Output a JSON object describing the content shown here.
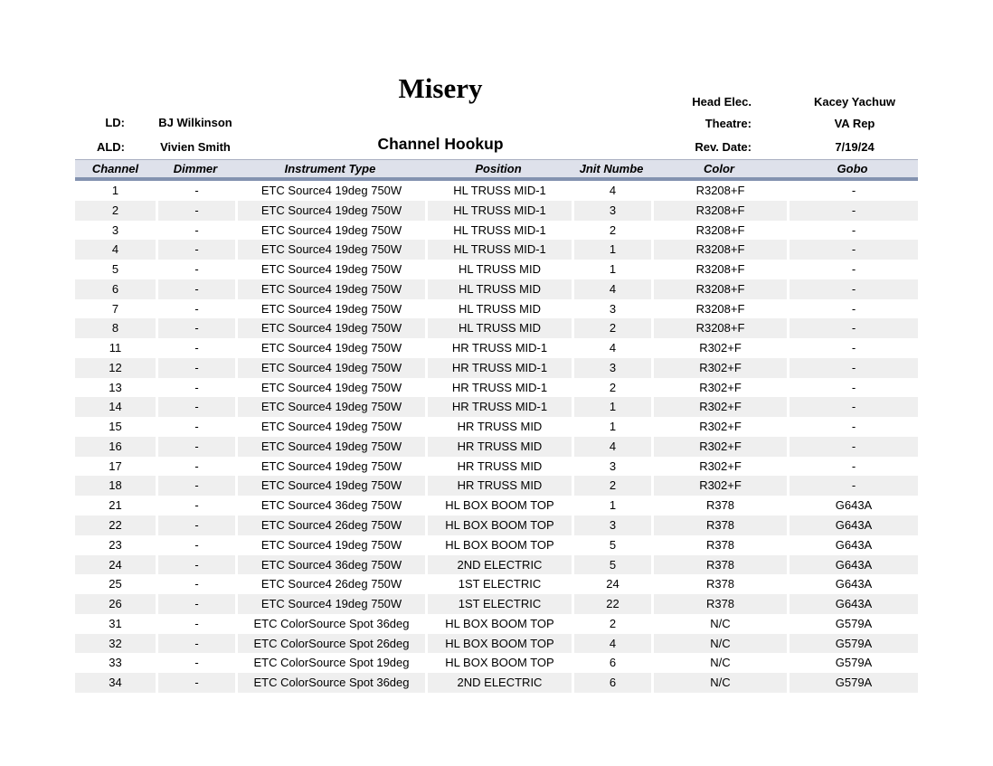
{
  "title": "Misery",
  "subtitle": "Channel Hookup",
  "info": {
    "ld_label": "LD:",
    "ld_value": "BJ Wilkinson",
    "ald_label": "ALD:",
    "ald_value": "Vivien Smith",
    "head_elec_label": "Head Elec.",
    "head_elec_value": "Kacey Yachuw",
    "theatre_label": "Theatre:",
    "theatre_value": "VA Rep",
    "rev_date_label": "Rev. Date:",
    "rev_date_value": "7/19/24"
  },
  "colors": {
    "header_band": "#dee1eb",
    "divider_bar": "#8392b0",
    "row_stripe": "#efefef"
  },
  "table": {
    "columns": [
      "Channel",
      "Dimmer",
      "Instrument Type",
      "Position",
      "Jnit Numbe",
      "Color",
      "Gobo"
    ],
    "rows": [
      [
        "1",
        "-",
        "ETC Source4 19deg 750W",
        "HL TRUSS MID-1",
        "4",
        "R3208+F",
        "-"
      ],
      [
        "2",
        "-",
        "ETC Source4 19deg 750W",
        "HL TRUSS MID-1",
        "3",
        "R3208+F",
        "-"
      ],
      [
        "3",
        "-",
        "ETC Source4 19deg 750W",
        "HL TRUSS MID-1",
        "2",
        "R3208+F",
        "-"
      ],
      [
        "4",
        "-",
        "ETC Source4 19deg 750W",
        "HL TRUSS MID-1",
        "1",
        "R3208+F",
        "-"
      ],
      [
        "5",
        "-",
        "ETC Source4 19deg 750W",
        "HL TRUSS MID",
        "1",
        "R3208+F",
        "-"
      ],
      [
        "6",
        "-",
        "ETC Source4 19deg 750W",
        "HL TRUSS MID",
        "4",
        "R3208+F",
        "-"
      ],
      [
        "7",
        "-",
        "ETC Source4 19deg 750W",
        "HL TRUSS MID",
        "3",
        "R3208+F",
        "-"
      ],
      [
        "8",
        "-",
        "ETC Source4 19deg 750W",
        "HL TRUSS MID",
        "2",
        "R3208+F",
        "-"
      ],
      [
        "11",
        "-",
        "ETC Source4 19deg 750W",
        "HR TRUSS MID-1",
        "4",
        "R302+F",
        "-"
      ],
      [
        "12",
        "-",
        "ETC Source4 19deg 750W",
        "HR TRUSS MID-1",
        "3",
        "R302+F",
        "-"
      ],
      [
        "13",
        "-",
        "ETC Source4 19deg 750W",
        "HR TRUSS MID-1",
        "2",
        "R302+F",
        "-"
      ],
      [
        "14",
        "-",
        "ETC Source4 19deg 750W",
        "HR TRUSS MID-1",
        "1",
        "R302+F",
        "-"
      ],
      [
        "15",
        "-",
        "ETC Source4 19deg 750W",
        "HR TRUSS MID",
        "1",
        "R302+F",
        "-"
      ],
      [
        "16",
        "-",
        "ETC Source4 19deg 750W",
        "HR TRUSS MID",
        "4",
        "R302+F",
        "-"
      ],
      [
        "17",
        "-",
        "ETC Source4 19deg 750W",
        "HR TRUSS MID",
        "3",
        "R302+F",
        "-"
      ],
      [
        "18",
        "-",
        "ETC Source4 19deg 750W",
        "HR TRUSS MID",
        "2",
        "R302+F",
        "-"
      ],
      [
        "21",
        "-",
        "ETC Source4 36deg 750W",
        "HL BOX BOOM TOP",
        "1",
        "R378",
        "G643A"
      ],
      [
        "22",
        "-",
        "ETC Source4 26deg 750W",
        "HL BOX BOOM TOP",
        "3",
        "R378",
        "G643A"
      ],
      [
        "23",
        "-",
        "ETC Source4 19deg 750W",
        "HL BOX BOOM TOP",
        "5",
        "R378",
        "G643A"
      ],
      [
        "24",
        "-",
        "ETC Source4 36deg 750W",
        "2ND ELECTRIC",
        "5",
        "R378",
        "G643A"
      ],
      [
        "25",
        "-",
        "ETC Source4 26deg 750W",
        "1ST ELECTRIC",
        "24",
        "R378",
        "G643A"
      ],
      [
        "26",
        "-",
        "ETC Source4 19deg 750W",
        "1ST ELECTRIC",
        "22",
        "R378",
        "G643A"
      ],
      [
        "31",
        "-",
        "ETC ColorSource Spot 36deg",
        "HL BOX BOOM TOP",
        "2",
        "N/C",
        "G579A"
      ],
      [
        "32",
        "-",
        "ETC ColorSource Spot 26deg",
        "HL BOX BOOM TOP",
        "4",
        "N/C",
        "G579A"
      ],
      [
        "33",
        "-",
        "ETC ColorSource Spot 19deg",
        "HL BOX BOOM TOP",
        "6",
        "N/C",
        "G579A"
      ],
      [
        "34",
        "-",
        "ETC ColorSource Spot 36deg",
        "2ND ELECTRIC",
        "6",
        "N/C",
        "G579A"
      ]
    ]
  }
}
